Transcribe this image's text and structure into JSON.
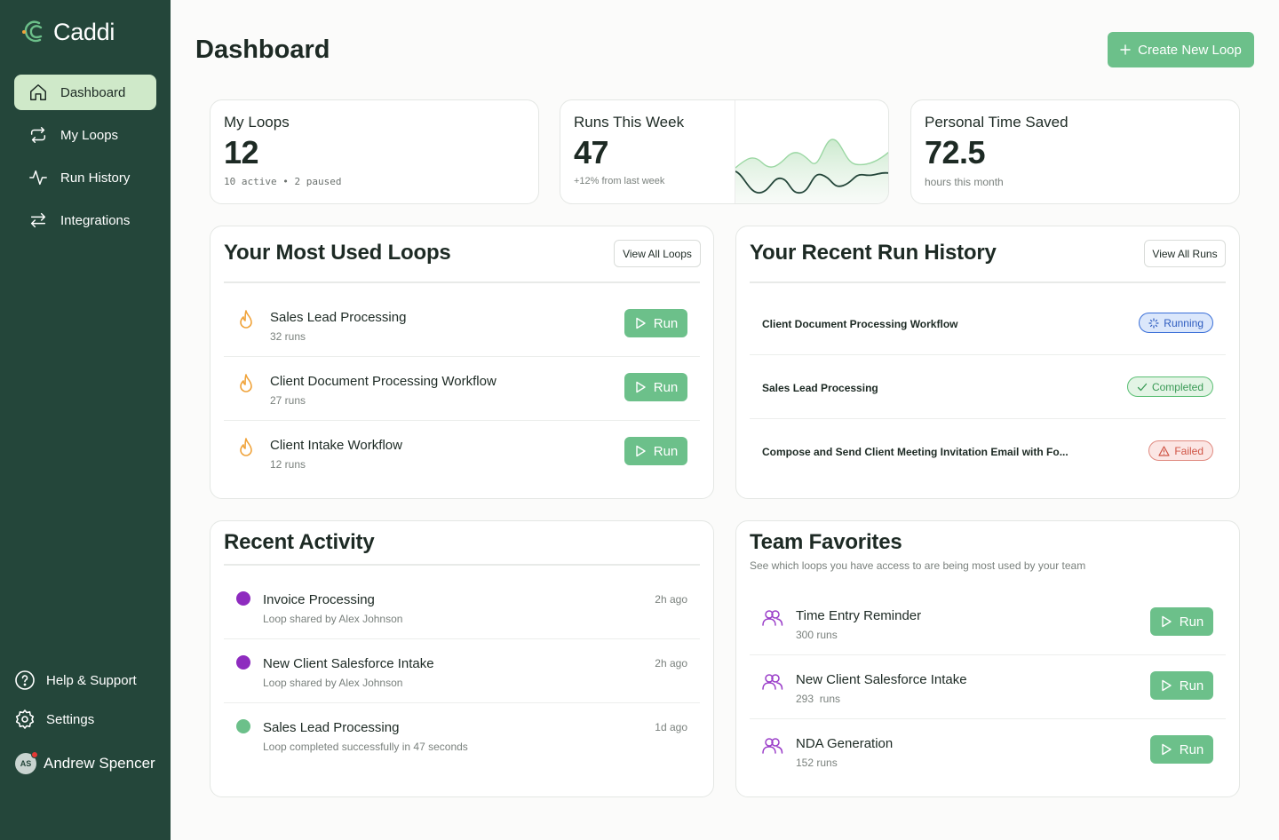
{
  "app": {
    "name": "Caddi"
  },
  "sidebar": {
    "items": [
      {
        "label": "Dashboard",
        "icon": "home-icon",
        "active": true
      },
      {
        "label": "My Loops",
        "icon": "loop-icon"
      },
      {
        "label": "Run History",
        "icon": "activity-icon"
      },
      {
        "label": "Integrations",
        "icon": "arrows-icon"
      }
    ],
    "help_label": "Help & Support",
    "settings_label": "Settings",
    "user": {
      "initials": "AS",
      "name": "Andrew Spencer"
    }
  },
  "header": {
    "title": "Dashboard",
    "create_label": "Create New Loop"
  },
  "stats": {
    "my_loops": {
      "label": "My Loops",
      "value": "12",
      "sub": "10 active • 2 paused"
    },
    "runs_week": {
      "label": "Runs This Week",
      "value": "47",
      "sub": "+12% from last week"
    },
    "time_saved": {
      "label": "Personal Time Saved",
      "value": "72.5",
      "sub": "hours this month"
    }
  },
  "most_used": {
    "title": "Your Most Used Loops",
    "button": "View All Loops",
    "run_label": "Run",
    "items": [
      {
        "title": "Sales Lead Processing",
        "sub": "32 runs"
      },
      {
        "title": "Client Document Processing Workflow",
        "sub": "27 runs"
      },
      {
        "title": "Client Intake Workflow",
        "sub": "12 runs"
      }
    ]
  },
  "run_history": {
    "title": "Your Recent Run History",
    "button": "View All Runs",
    "items": [
      {
        "title": "Client Document Processing Workflow",
        "status": "Running"
      },
      {
        "title": "Sales Lead Processing",
        "status": "Completed"
      },
      {
        "title": "Compose and Send Client Meeting Invitation Email with Fo...",
        "status": "Failed"
      }
    ]
  },
  "recent_activity": {
    "title": "Recent Activity",
    "items": [
      {
        "title": "Invoice Processing",
        "sub": "Loop shared by Alex Johnson",
        "time": "2h ago",
        "color": "#8e2bbf"
      },
      {
        "title": "New Client Salesforce Intake",
        "sub": "Loop shared by Alex Johnson",
        "time": "2h ago",
        "color": "#8e2bbf"
      },
      {
        "title": "Sales Lead Processing",
        "sub": "Loop completed successfully in 47 seconds",
        "time": "1d ago",
        "color": "#6cc08a"
      }
    ]
  },
  "team_favorites": {
    "title": "Team Favorites",
    "desc": "See which loops you have access to are being most used by your team",
    "run_label": "Run",
    "items": [
      {
        "title": "Time Entry Reminder",
        "sub": "300 runs"
      },
      {
        "title": "New Client Salesforce Intake",
        "sub": "293  runs"
      },
      {
        "title": "NDA Generation",
        "sub": "152 runs"
      }
    ]
  },
  "colors": {
    "sidebar_bg": "#24463a",
    "accent_green": "#6cc08a",
    "active_nav": "#cfe9c9",
    "flame": "#f0a33a",
    "team_icon": "#9b3fc9"
  }
}
